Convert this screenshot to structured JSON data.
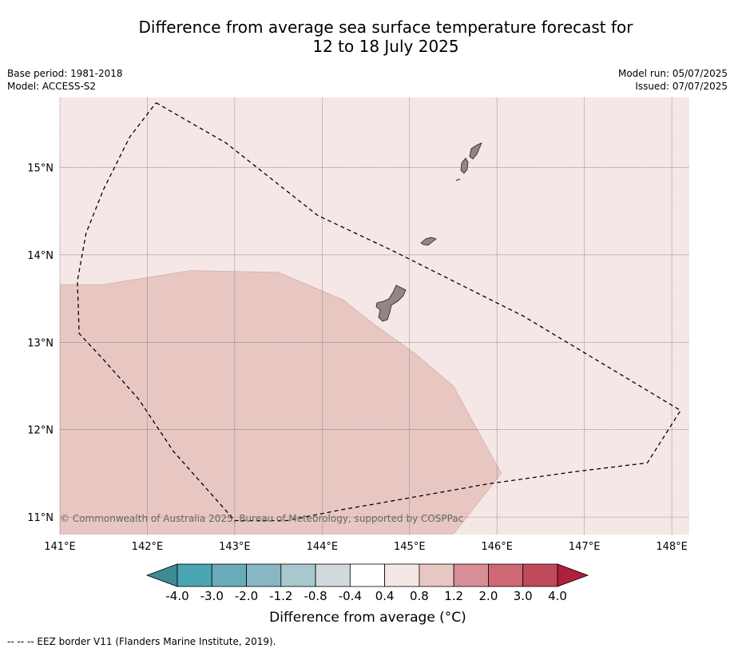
{
  "title_line1": "Difference from average sea surface temperature forecast for",
  "title_line2": "12 to 18 July 2025",
  "meta": {
    "base_period": "Base period: 1981-2018",
    "model": "Model: ACCESS-S2",
    "model_run": "Model run: 05/07/2025",
    "issued": "Issued: 07/07/2025"
  },
  "map": {
    "lon_ticks": [
      "141°E",
      "142°E",
      "143°E",
      "144°E",
      "145°E",
      "146°E",
      "147°E",
      "148°E"
    ],
    "lat_ticks": [
      "15°N",
      "14°N",
      "13°N",
      "12°N",
      "11°N"
    ],
    "lon_range": [
      141,
      148.2
    ],
    "lat_range": [
      10.8,
      15.8
    ],
    "background_fill_color": "#f5e7e6",
    "warm_region_color": "#e8c7c3",
    "land_color": "#938585",
    "warm_region_polygon_lonlat": [
      [
        141.0,
        13.66
      ],
      [
        141.5,
        13.66
      ],
      [
        142.5,
        13.82
      ],
      [
        143.5,
        13.8
      ],
      [
        144.25,
        13.48
      ],
      [
        144.6,
        13.2
      ],
      [
        145.05,
        12.88
      ],
      [
        145.5,
        12.5
      ],
      [
        146.05,
        11.5
      ],
      [
        145.5,
        10.8
      ],
      [
        141.0,
        10.8
      ]
    ],
    "eez_border_lonlat": [
      [
        142.1,
        15.74
      ],
      [
        142.9,
        15.28
      ],
      [
        143.95,
        14.45
      ],
      [
        144.8,
        14.05
      ],
      [
        145.6,
        13.65
      ],
      [
        146.3,
        13.3
      ],
      [
        147.1,
        12.82
      ],
      [
        148.1,
        12.22
      ],
      [
        147.72,
        11.62
      ],
      [
        146.9,
        11.52
      ],
      [
        145.9,
        11.38
      ],
      [
        145.0,
        11.22
      ],
      [
        144.2,
        11.08
      ],
      [
        143.6,
        10.96
      ],
      [
        143.0,
        10.96
      ],
      [
        142.3,
        11.75
      ],
      [
        141.9,
        12.35
      ],
      [
        141.5,
        12.8
      ],
      [
        141.22,
        13.1
      ],
      [
        141.2,
        13.7
      ],
      [
        141.3,
        14.25
      ],
      [
        141.5,
        14.75
      ],
      [
        141.8,
        15.35
      ],
      [
        142.1,
        15.74
      ]
    ],
    "copyright": "© Commonwealth of Australia 2025, Bureau of Meteorology, supported by COSPPac"
  },
  "colorbar": {
    "tick_labels": [
      "-4.0",
      "-3.0",
      "-2.0",
      "-1.2",
      "-0.8",
      "-0.4",
      "0.4",
      "0.8",
      "1.2",
      "2.0",
      "3.0",
      "4.0"
    ],
    "low_extend_color": "#3f8a94",
    "high_extend_color": "#b01f3b",
    "colors": [
      "#4aa5b3",
      "#6aabba",
      "#88b6c2",
      "#a7c8cd",
      "#d2d9dc",
      "#ffffff",
      "#f5e7e6",
      "#e8c7c3",
      "#d88f97",
      "#cd6874",
      "#c0495b"
    ],
    "label": "Difference from average (°C)"
  },
  "footer": "--  --  -- EEZ border V11 (Flanders Marine Institute, 2019)."
}
